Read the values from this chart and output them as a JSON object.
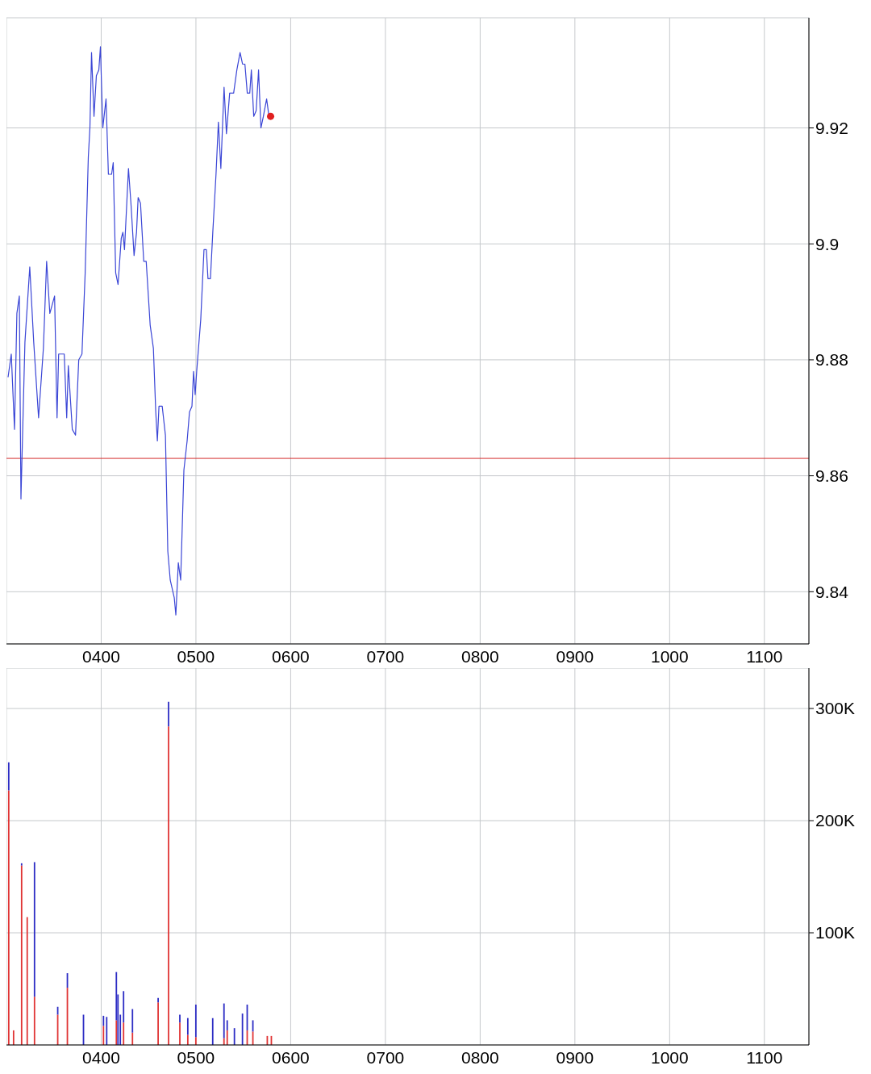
{
  "chart_data": [
    {
      "type": "line",
      "xlim": [
        300,
        1147
      ],
      "ylim": [
        9.831,
        9.939
      ],
      "xticks": [
        {
          "value": 400,
          "label": "0400"
        },
        {
          "value": 500,
          "label": "0500"
        },
        {
          "value": 600,
          "label": "0600"
        },
        {
          "value": 700,
          "label": "0700"
        },
        {
          "value": 800,
          "label": "0800"
        },
        {
          "value": 900,
          "label": "0900"
        },
        {
          "value": 1000,
          "label": "1000"
        },
        {
          "value": 1100,
          "label": "1100"
        }
      ],
      "yticks": [
        9.84,
        9.86,
        9.88,
        9.9,
        9.92
      ],
      "grid": true,
      "ref_lines": [
        {
          "axis": "y",
          "value": 9.863,
          "color": "#d42a2a"
        }
      ],
      "series": [
        {
          "color": "#3b46d6",
          "marker": "none",
          "x": [
            301.7,
            305.1,
            308.5,
            311.0,
            313.6,
            315.3,
            319.5,
            324.6,
            328.8,
            333.9,
            339.0,
            342.4,
            345.8,
            350.8,
            353.4,
            355.1,
            361.0,
            363.6,
            365.3,
            369.5,
            372.9,
            376.3,
            379.7,
            383.1,
            386.4,
            388.1,
            389.8,
            392.4,
            394.9,
            397.5,
            399.2,
            401.7,
            405.1,
            407.6,
            411.0,
            412.7,
            415.3,
            417.8,
            421.2,
            422.9,
            424.6,
            428.8,
            431.4,
            434.7,
            437.3,
            439.0,
            441.5,
            444.9,
            447.5,
            451.7,
            455.1,
            457.6,
            459.3,
            461.0,
            464.4,
            467.8,
            470.3,
            472.9,
            477.1,
            478.8,
            481.4,
            483.9,
            487.3,
            490.7,
            493.2,
            495.8,
            497.5,
            499.2,
            500.8,
            505.1,
            508.5,
            511.0,
            512.7,
            515.3,
            517.8,
            521.2,
            523.7,
            526.3,
            529.7,
            532.2,
            535.6,
            539.8,
            543.2,
            546.6,
            549.2,
            551.7,
            554.2,
            556.8,
            558.5,
            561.0,
            563.6,
            566.1,
            568.6,
            571.2,
            574.6,
            577.1
          ],
          "values": [
            9.877,
            9.881,
            9.868,
            9.888,
            9.891,
            9.856,
            9.883,
            9.896,
            9.883,
            9.87,
            9.882,
            9.897,
            9.888,
            9.891,
            9.87,
            9.881,
            9.881,
            9.87,
            9.879,
            9.868,
            9.867,
            9.88,
            9.881,
            9.895,
            9.915,
            9.92,
            9.933,
            9.922,
            9.929,
            9.93,
            9.934,
            9.92,
            9.925,
            9.912,
            9.912,
            9.914,
            9.895,
            9.893,
            9.901,
            9.902,
            9.899,
            9.913,
            9.907,
            9.898,
            9.902,
            9.908,
            9.907,
            9.897,
            9.897,
            9.886,
            9.882,
            9.871,
            9.866,
            9.872,
            9.872,
            9.867,
            9.847,
            9.842,
            9.839,
            9.836,
            9.845,
            9.842,
            9.861,
            9.866,
            9.871,
            9.872,
            9.878,
            9.874,
            9.878,
            9.887,
            9.899,
            9.899,
            9.894,
            9.894,
            9.902,
            9.912,
            9.921,
            9.913,
            9.927,
            9.919,
            9.926,
            9.926,
            9.93,
            9.933,
            9.931,
            9.931,
            9.926,
            9.926,
            9.93,
            9.922,
            9.923,
            9.93,
            9.92,
            9.922,
            9.925,
            9.922
          ]
        },
        {
          "type": "scatter",
          "color": "#e02020",
          "marker": "circle",
          "x": [
            578.8
          ],
          "values": [
            9.922
          ]
        }
      ]
    },
    {
      "type": "bar",
      "stacked": true,
      "xlim": [
        300,
        1147
      ],
      "ylim": [
        0,
        336000
      ],
      "xticks": [
        {
          "value": 400,
          "label": "0400"
        },
        {
          "value": 500,
          "label": "0500"
        },
        {
          "value": 600,
          "label": "0600"
        },
        {
          "value": 700,
          "label": "0700"
        },
        {
          "value": 800,
          "label": "0800"
        },
        {
          "value": 900,
          "label": "0900"
        },
        {
          "value": 1000,
          "label": "1000"
        },
        {
          "value": 1100,
          "label": "1100"
        }
      ],
      "yticks": [
        {
          "value": 100000,
          "label": "100K"
        },
        {
          "value": 200000,
          "label": "200K"
        },
        {
          "value": 300000,
          "label": "300K"
        }
      ],
      "grid": true,
      "x": [
        302.5,
        307.6,
        316.1,
        322.0,
        329.7,
        354.2,
        364.4,
        381.4,
        402.5,
        405.9,
        416.1,
        417.8,
        420.3,
        423.7,
        433.1,
        460.2,
        471.2,
        483.1,
        491.5,
        500.0,
        517.8,
        529.7,
        533.1,
        540.7,
        549.2,
        554.2,
        560.2,
        575.4,
        579.7
      ],
      "series": [
        {
          "color": "#e03434",
          "values": [
            227000,
            13000,
            160000,
            114000,
            43000,
            27000,
            51000,
            0,
            17000,
            0,
            22000,
            0,
            0,
            20000,
            11000,
            38000,
            284000,
            20000,
            9000,
            7000,
            0,
            6000,
            13000,
            0,
            0,
            13000,
            12000,
            8000,
            8000
          ]
        },
        {
          "color": "#2c2cc4",
          "values": [
            25000,
            0,
            2000,
            0,
            120000,
            7000,
            13000,
            27000,
            9000,
            25000,
            43000,
            45000,
            27000,
            28000,
            21000,
            4000,
            22000,
            7000,
            15000,
            29000,
            24000,
            31000,
            9000,
            15000,
            28000,
            23000,
            10000,
            null,
            null
          ]
        }
      ]
    }
  ]
}
